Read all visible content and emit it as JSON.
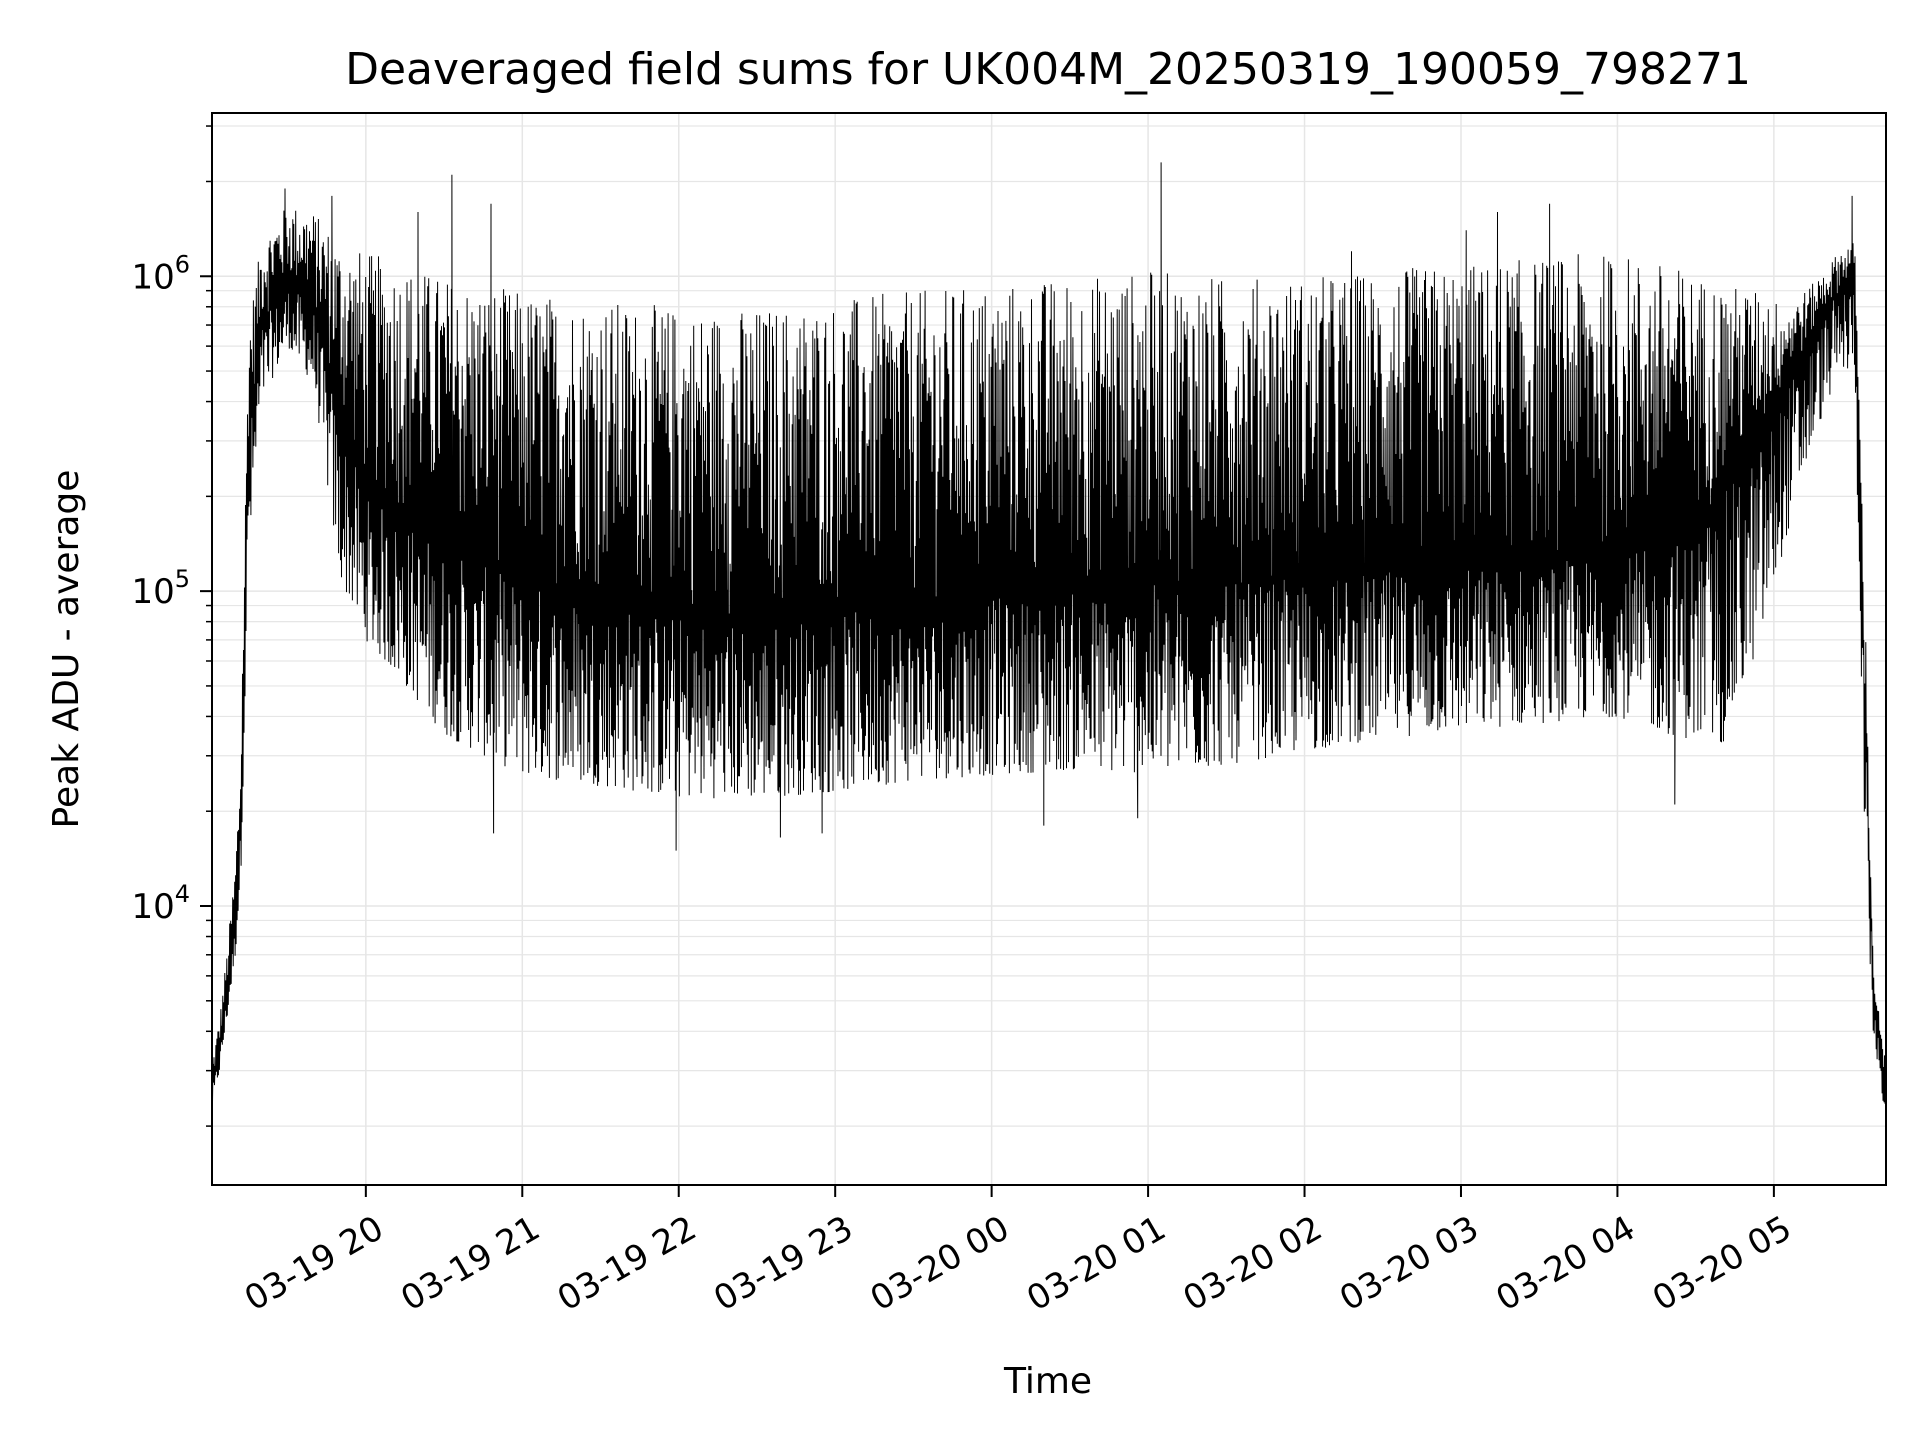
{
  "chart_data": {
    "type": "line",
    "title": "Deaveraged field sums for UK004M_20250319_190059_798271",
    "xlabel": "Time",
    "ylabel": "Peak ADU - average",
    "x_scale": "time",
    "y_scale": "log",
    "xlim": [
      "2025-03-19 19:01",
      "2025-03-20 05:43"
    ],
    "ylim": [
      1300,
      3300000
    ],
    "grid": true,
    "grid_minor": true,
    "line_color": "#000000",
    "grid_color": "#e6e6e6",
    "x_ticks": [
      {
        "value": "2025-03-19 20:00",
        "label": "03-19 20"
      },
      {
        "value": "2025-03-19 21:00",
        "label": "03-19 21"
      },
      {
        "value": "2025-03-19 22:00",
        "label": "03-19 22"
      },
      {
        "value": "2025-03-19 23:00",
        "label": "03-19 23"
      },
      {
        "value": "2025-03-20 00:00",
        "label": "03-20 00"
      },
      {
        "value": "2025-03-20 01:00",
        "label": "03-20 01"
      },
      {
        "value": "2025-03-20 02:00",
        "label": "03-20 02"
      },
      {
        "value": "2025-03-20 03:00",
        "label": "03-20 03"
      },
      {
        "value": "2025-03-20 04:00",
        "label": "03-20 04"
      },
      {
        "value": "2025-03-20 05:00",
        "label": "03-20 05"
      }
    ],
    "y_ticks": [
      {
        "value": 10000,
        "base": "10",
        "exp": "4"
      },
      {
        "value": 100000,
        "base": "10",
        "exp": "5"
      },
      {
        "value": 1000000,
        "base": "10",
        "exp": "6"
      }
    ],
    "envelope": {
      "x": [
        "2025-03-19 19:01",
        "2025-03-19 19:04",
        "2025-03-19 19:07",
        "2025-03-19 19:10",
        "2025-03-19 19:12",
        "2025-03-19 19:15",
        "2025-03-19 19:20",
        "2025-03-19 19:30",
        "2025-03-19 19:40",
        "2025-03-19 19:50",
        "2025-03-19 20:00",
        "2025-03-19 20:15",
        "2025-03-19 20:30",
        "2025-03-19 20:45",
        "2025-03-19 21:00",
        "2025-03-19 21:30",
        "2025-03-19 22:00",
        "2025-03-19 22:30",
        "2025-03-19 23:00",
        "2025-03-19 23:30",
        "2025-03-20 00:00",
        "2025-03-20 00:30",
        "2025-03-20 01:00",
        "2025-03-20 01:30",
        "2025-03-20 02:00",
        "2025-03-20 02:30",
        "2025-03-20 03:00",
        "2025-03-20 03:30",
        "2025-03-20 04:00",
        "2025-03-20 04:20",
        "2025-03-20 04:40",
        "2025-03-20 04:55",
        "2025-03-20 05:05",
        "2025-03-20 05:15",
        "2025-03-20 05:25",
        "2025-03-20 05:31",
        "2025-03-20 05:35",
        "2025-03-20 05:38",
        "2025-03-20 05:41",
        "2025-03-20 05:43"
      ],
      "low": [
        2300,
        3000,
        4500,
        7000,
        12000,
        120000,
        400000,
        600000,
        450000,
        110000,
        70000,
        50000,
        35000,
        30000,
        26000,
        24000,
        22000,
        22000,
        23000,
        25000,
        26000,
        27000,
        26000,
        28000,
        31000,
        34000,
        36000,
        38000,
        40000,
        35000,
        32000,
        70000,
        150000,
        300000,
        500000,
        500000,
        15000,
        4000,
        2600,
        2100
      ],
      "mid": [
        2600,
        3500,
        5500,
        9000,
        18000,
        300000,
        700000,
        950000,
        800000,
        350000,
        200000,
        170000,
        140000,
        120000,
        110000,
        95000,
        85000,
        80000,
        85000,
        90000,
        95000,
        100000,
        105000,
        105000,
        110000,
        115000,
        120000,
        125000,
        130000,
        140000,
        200000,
        300000,
        450000,
        650000,
        900000,
        1000000,
        40000,
        5500,
        3200,
        2600
      ],
      "high": [
        3200,
        4500,
        7500,
        14000,
        30000,
        700000,
        1300000,
        1700000,
        1600000,
        1300000,
        1200000,
        1100000,
        1000000,
        950000,
        900000,
        850000,
        800000,
        800000,
        850000,
        900000,
        950000,
        1000000,
        1050000,
        1000000,
        1000000,
        1050000,
        1100000,
        1150000,
        1200000,
        1100000,
        950000,
        900000,
        800000,
        950000,
        1200000,
        1300000,
        90000,
        7000,
        4000,
        3300
      ]
    },
    "spikes": [
      {
        "x": "2025-03-19 19:29",
        "y": 1900000
      },
      {
        "x": "2025-03-19 19:47",
        "y": 1800000
      },
      {
        "x": "2025-03-19 20:20",
        "y": 1600000
      },
      {
        "x": "2025-03-19 20:33",
        "y": 2100000
      },
      {
        "x": "2025-03-19 20:48",
        "y": 1700000
      },
      {
        "x": "2025-03-19 20:49",
        "y": 17000
      },
      {
        "x": "2025-03-19 21:59",
        "y": 15000
      },
      {
        "x": "2025-03-19 22:39",
        "y": 16500
      },
      {
        "x": "2025-03-19 22:55",
        "y": 17000
      },
      {
        "x": "2025-03-20 00:20",
        "y": 18000
      },
      {
        "x": "2025-03-20 00:56",
        "y": 19000
      },
      {
        "x": "2025-03-20 01:05",
        "y": 2300000
      },
      {
        "x": "2025-03-20 02:18",
        "y": 1200000
      },
      {
        "x": "2025-03-20 03:02",
        "y": 1400000
      },
      {
        "x": "2025-03-20 03:14",
        "y": 1600000
      },
      {
        "x": "2025-03-20 03:34",
        "y": 1700000
      },
      {
        "x": "2025-03-20 04:22",
        "y": 21000
      },
      {
        "x": "2025-03-20 05:30",
        "y": 1800000
      }
    ]
  }
}
